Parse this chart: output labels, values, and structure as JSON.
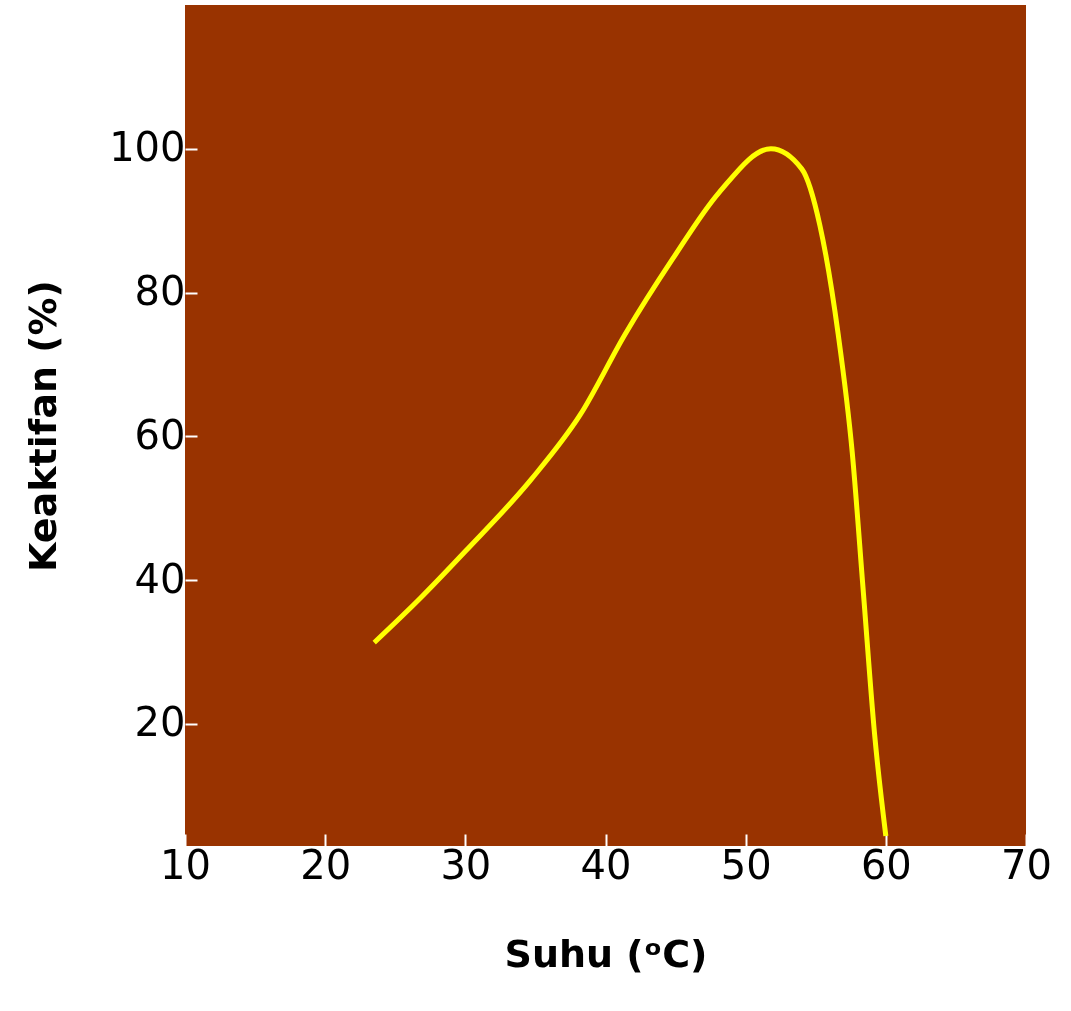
{
  "chart_data": {
    "type": "line",
    "xlabel": "Suhu (ᵒC)",
    "ylabel": "Keaktifan (%)",
    "xlim": [
      10,
      70
    ],
    "xticks": [
      10,
      20,
      30,
      40,
      50,
      60,
      70
    ],
    "ylim": [
      3,
      120
    ],
    "yticks": [
      20,
      40,
      60,
      80,
      100
    ],
    "grid": false,
    "marker": "none",
    "line_style": "solid",
    "series": [
      {
        "color": "#ffff00",
        "x": [
          23.5,
          26.8,
          30,
          34.7,
          38.2,
          41.4,
          44.8,
          48.1,
          51.8,
          54.0,
          55.3,
          56.6,
          57.6,
          58.4,
          59.2,
          60
        ],
        "values": [
          31.3,
          37.5,
          44,
          54,
          63,
          74.2,
          84.7,
          93.9,
          100,
          97.2,
          89.3,
          74.2,
          57.8,
          38.2,
          18.5,
          4.4
        ]
      }
    ]
  }
}
